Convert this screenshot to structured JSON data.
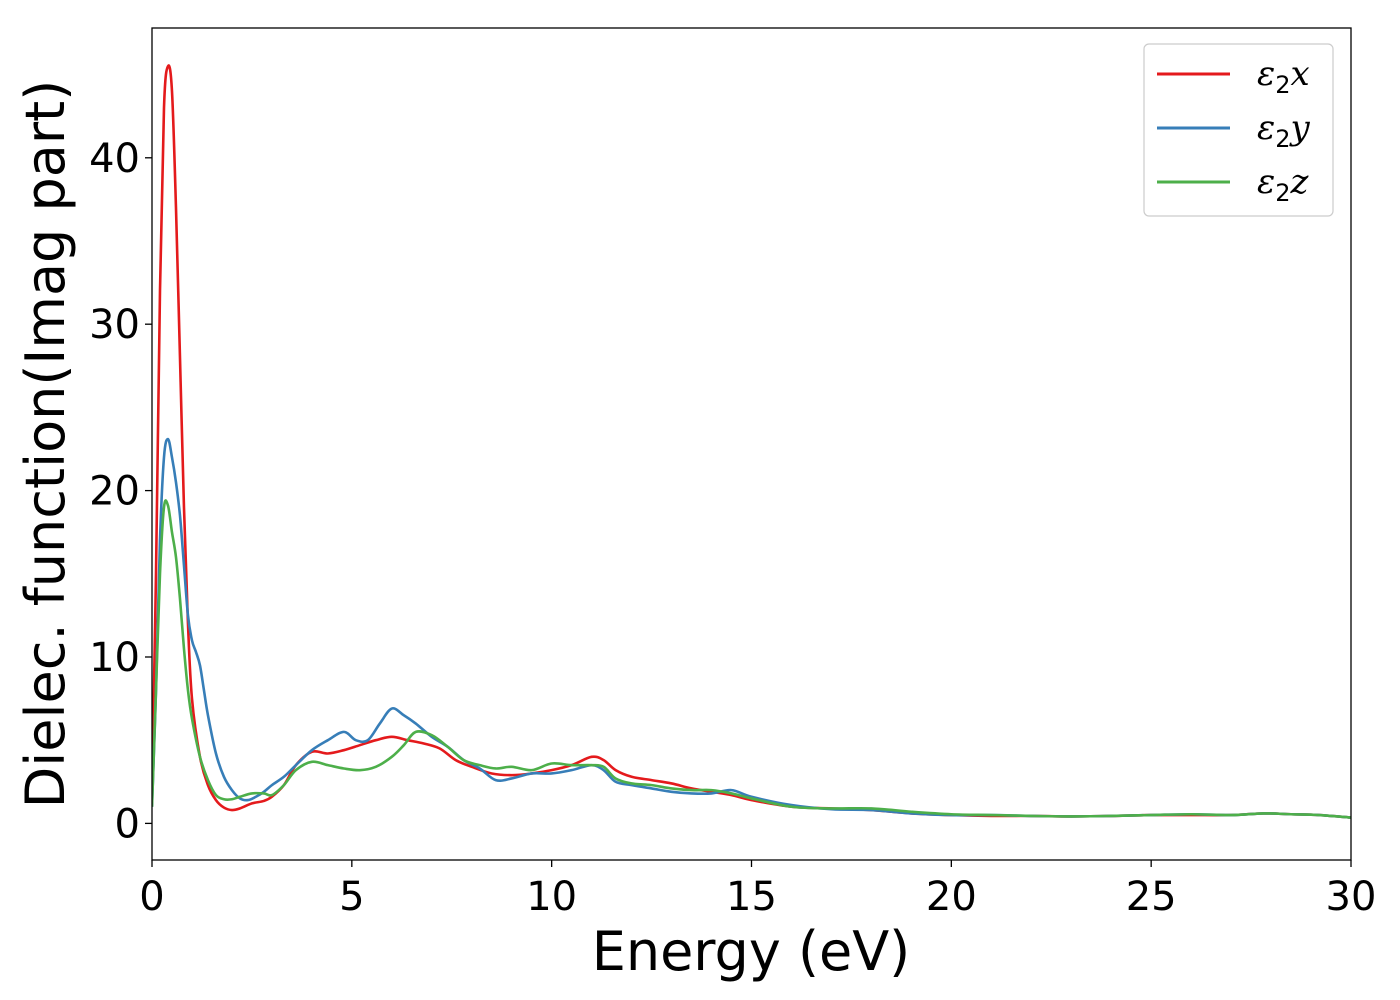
{
  "chart_data": {
    "type": "line",
    "xlabel": "Energy (eV)",
    "ylabel": "Dielec. function(Imag part)",
    "xlim": [
      0,
      30
    ],
    "ylim": [
      -2.2,
      47.8
    ],
    "xticks": [
      0,
      5,
      10,
      15,
      20,
      25,
      30
    ],
    "yticks": [
      0,
      10,
      20,
      30,
      40
    ],
    "grid": false,
    "legend_position": "top-right",
    "series": [
      {
        "name": "ε2x",
        "legend": {
          "base": "ε",
          "sub": "2",
          "tail": "x"
        },
        "color": "#e41a1c",
        "x": [
          0,
          0.1,
          0.2,
          0.3,
          0.4,
          0.5,
          0.6,
          0.7,
          0.8,
          0.9,
          1.0,
          1.2,
          1.4,
          1.6,
          1.8,
          2.0,
          2.2,
          2.5,
          2.8,
          3.0,
          3.3,
          3.6,
          4.0,
          4.4,
          4.8,
          5.2,
          5.6,
          6.0,
          6.4,
          6.8,
          7.2,
          7.6,
          8.0,
          8.5,
          9.0,
          9.5,
          10.0,
          10.5,
          11.0,
          11.3,
          11.6,
          12.0,
          12.5,
          13.0,
          13.5,
          14.0,
          14.5,
          15.0,
          16.0,
          17.0,
          18.0,
          19.0,
          20.0,
          21.0,
          22.0,
          23.0,
          24.0,
          25.0,
          26.0,
          27.0,
          27.8,
          28.5,
          29.2,
          30.0
        ],
        "y": [
          2.0,
          15.0,
          32.0,
          43.0,
          45.5,
          44.0,
          37.0,
          28.0,
          19.0,
          12.0,
          7.5,
          4.0,
          2.3,
          1.4,
          0.95,
          0.8,
          0.9,
          1.2,
          1.35,
          1.6,
          2.3,
          3.5,
          4.3,
          4.2,
          4.4,
          4.7,
          5.0,
          5.2,
          5.0,
          4.8,
          4.5,
          3.8,
          3.4,
          3.0,
          2.9,
          3.0,
          3.2,
          3.5,
          4.0,
          3.8,
          3.2,
          2.8,
          2.6,
          2.4,
          2.1,
          1.9,
          1.7,
          1.4,
          1.0,
          0.9,
          0.8,
          0.6,
          0.5,
          0.45,
          0.45,
          0.42,
          0.45,
          0.5,
          0.5,
          0.5,
          0.6,
          0.55,
          0.5,
          0.35
        ]
      },
      {
        "name": "ε2y",
        "legend": {
          "base": "ε",
          "sub": "2",
          "tail": "y"
        },
        "color": "#377eb8",
        "x": [
          0,
          0.1,
          0.2,
          0.3,
          0.4,
          0.5,
          0.6,
          0.7,
          0.8,
          0.9,
          1.0,
          1.1,
          1.2,
          1.3,
          1.4,
          1.6,
          1.8,
          2.0,
          2.2,
          2.4,
          2.6,
          2.8,
          3.0,
          3.3,
          3.6,
          4.0,
          4.4,
          4.8,
          5.1,
          5.4,
          5.7,
          6.0,
          6.3,
          6.6,
          7.0,
          7.4,
          7.8,
          8.2,
          8.6,
          9.0,
          9.5,
          10.0,
          10.5,
          11.0,
          11.3,
          11.6,
          12.0,
          12.5,
          13.0,
          13.5,
          14.0,
          14.5,
          15.0,
          16.0,
          17.0,
          18.0,
          19.0,
          20.0,
          21.0,
          22.0,
          23.0,
          24.0,
          25.0,
          26.0,
          27.0,
          27.8,
          28.5,
          29.2,
          30.0
        ],
        "y": [
          1.0,
          8.0,
          17.0,
          22.0,
          23.1,
          22.0,
          20.5,
          18.5,
          15.5,
          12.5,
          11.0,
          10.3,
          9.5,
          8.0,
          6.5,
          4.2,
          2.8,
          2.0,
          1.5,
          1.4,
          1.6,
          1.9,
          2.3,
          2.8,
          3.5,
          4.4,
          5.0,
          5.5,
          5.0,
          5.0,
          6.0,
          6.9,
          6.5,
          6.0,
          5.2,
          4.6,
          3.8,
          3.3,
          2.6,
          2.7,
          3.0,
          3.0,
          3.2,
          3.5,
          3.2,
          2.5,
          2.3,
          2.1,
          1.9,
          1.8,
          1.8,
          2.0,
          1.6,
          1.1,
          0.85,
          0.8,
          0.6,
          0.5,
          0.5,
          0.45,
          0.42,
          0.45,
          0.5,
          0.55,
          0.5,
          0.6,
          0.55,
          0.5,
          0.35
        ]
      },
      {
        "name": "ε2z",
        "legend": {
          "base": "ε",
          "sub": "2",
          "tail": "z"
        },
        "color": "#4daf4a",
        "x": [
          0,
          0.1,
          0.2,
          0.3,
          0.4,
          0.5,
          0.6,
          0.7,
          0.8,
          0.9,
          1.0,
          1.2,
          1.4,
          1.6,
          1.8,
          2.0,
          2.2,
          2.5,
          2.8,
          3.0,
          3.3,
          3.6,
          4.0,
          4.4,
          4.8,
          5.2,
          5.6,
          6.0,
          6.3,
          6.6,
          7.0,
          7.4,
          7.8,
          8.2,
          8.6,
          9.0,
          9.5,
          10.0,
          10.5,
          11.0,
          11.3,
          11.6,
          12.0,
          12.5,
          13.0,
          13.5,
          14.0,
          14.5,
          15.0,
          16.0,
          17.0,
          18.0,
          19.0,
          20.0,
          21.0,
          22.0,
          23.0,
          24.0,
          25.0,
          26.0,
          27.0,
          27.8,
          28.5,
          29.2,
          30.0
        ],
        "y": [
          1.0,
          8.0,
          15.0,
          19.0,
          19.1,
          17.5,
          16.0,
          13.5,
          10.5,
          8.0,
          6.3,
          4.0,
          2.6,
          1.7,
          1.45,
          1.45,
          1.6,
          1.8,
          1.8,
          1.7,
          2.3,
          3.2,
          3.7,
          3.5,
          3.3,
          3.2,
          3.4,
          4.0,
          4.7,
          5.5,
          5.3,
          4.6,
          3.8,
          3.5,
          3.3,
          3.4,
          3.2,
          3.6,
          3.5,
          3.5,
          3.4,
          2.7,
          2.4,
          2.3,
          2.1,
          2.0,
          2.0,
          1.8,
          1.5,
          1.0,
          0.9,
          0.9,
          0.7,
          0.55,
          0.5,
          0.45,
          0.42,
          0.45,
          0.5,
          0.55,
          0.5,
          0.6,
          0.55,
          0.5,
          0.35
        ]
      }
    ]
  }
}
